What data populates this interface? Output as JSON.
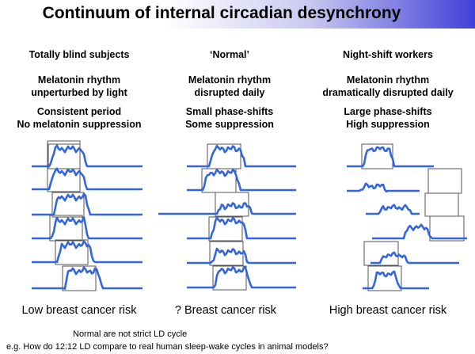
{
  "title": "Continuum of internal circadian desynchrony",
  "columns": [
    {
      "heading": "Totally blind subjects",
      "rhythm": [
        "Melatonin rhythm",
        "unperturbed by light"
      ],
      "features": [
        "Consistent period",
        "No melatonin suppression"
      ],
      "risk": "Low breast cancer risk"
    },
    {
      "heading": "‘Normal’",
      "rhythm": [
        "Melatonin rhythm",
        "disrupted daily"
      ],
      "features": [
        "Small phase-shifts",
        "Some suppression"
      ],
      "risk": "? Breast cancer risk"
    },
    {
      "heading": "Night-shift workers",
      "rhythm": [
        "Melatonin rhythm",
        "dramatically disrupted daily"
      ],
      "features": [
        "Large phase-shifts",
        "High suppression"
      ],
      "risk": "High breast cancer risk"
    }
  ],
  "footnotes": [
    "Normal are not strict LD cycle",
    "e.g. How do 12:12 LD compare to real human sleep-wake cycles in animal models?"
  ],
  "colors": {
    "trace": "#3366dd",
    "box": "#555555"
  }
}
